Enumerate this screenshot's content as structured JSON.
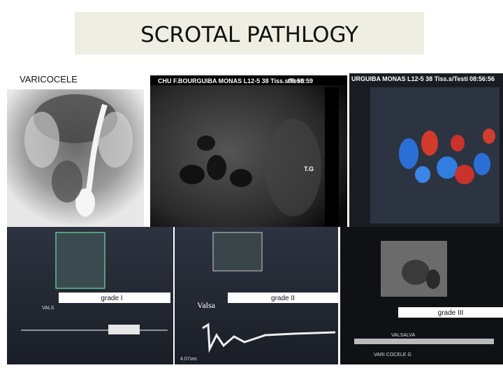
{
  "header": {
    "title": "SCROTAL PATHLOGY"
  },
  "section_label": "VARICOCELE",
  "panels": [
    {
      "header": "CHU F.BOURGUIBA MONAS L12-5 38 Tiss.s/Testi",
      "time": "08:59:59",
      "marker": "T.G"
    },
    {
      "header": "URGUIBA MONAS L12-5 38 Tiss.s/Testi",
      "time": "08:56:56"
    }
  ],
  "doppler": [
    {
      "caption": "grade I",
      "trace_label": "VALS"
    },
    {
      "caption": "grade II",
      "trace_label": "Valsa",
      "duration": "4.07sec"
    },
    {
      "caption": "grade III",
      "trace_label": "VALSALVA",
      "footer": "VARI COCELE G"
    }
  ]
}
